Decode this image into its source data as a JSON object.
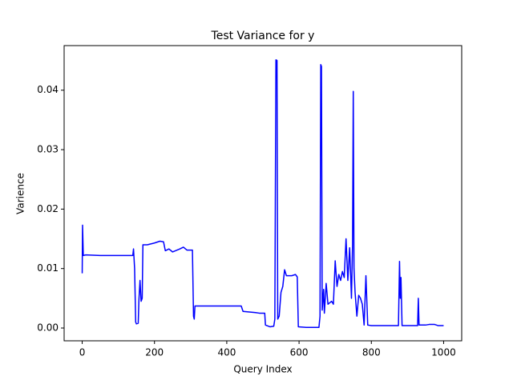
{
  "chart_data": {
    "type": "line",
    "title": "Test Variance for y",
    "x_label": "Query Index",
    "y_label": "Varience",
    "color": "#0000ff",
    "x": [
      0,
      1,
      3,
      10,
      50,
      100,
      140,
      142,
      145,
      148,
      150,
      155,
      157,
      160,
      163,
      166,
      168,
      180,
      200,
      215,
      225,
      230,
      240,
      250,
      270,
      280,
      290,
      305,
      308,
      310,
      312,
      350,
      400,
      440,
      445,
      480,
      490,
      505,
      507,
      520,
      530,
      533,
      536,
      539,
      541,
      545,
      550,
      555,
      560,
      565,
      580,
      590,
      595,
      598,
      620,
      655,
      658,
      660,
      662,
      664,
      668,
      670,
      675,
      680,
      690,
      695,
      700,
      705,
      710,
      715,
      720,
      725,
      730,
      735,
      740,
      745,
      748,
      750,
      752,
      755,
      760,
      765,
      770,
      775,
      780,
      785,
      790,
      800,
      850,
      875,
      878,
      880,
      882,
      885,
      900,
      928,
      930,
      932,
      950,
      960,
      975,
      985,
      1000
    ],
    "values": [
      0.0092,
      0.0173,
      0.0122,
      0.0123,
      0.0122,
      0.0122,
      0.0122,
      0.0133,
      0.01,
      0.001,
      0.0007,
      0.0008,
      0.0048,
      0.008,
      0.0045,
      0.005,
      0.014,
      0.014,
      0.0143,
      0.0146,
      0.0145,
      0.013,
      0.0133,
      0.0128,
      0.0133,
      0.0136,
      0.0131,
      0.0131,
      0.002,
      0.0015,
      0.0037,
      0.0037,
      0.0037,
      0.0037,
      0.0028,
      0.0026,
      0.0025,
      0.0025,
      0.0005,
      0.0002,
      0.0003,
      0.0015,
      0.0451,
      0.045,
      0.0015,
      0.002,
      0.006,
      0.007,
      0.0098,
      0.0088,
      0.0088,
      0.009,
      0.0086,
      0.0002,
      0.0001,
      0.0001,
      0.002,
      0.0443,
      0.044,
      0.003,
      0.0065,
      0.0025,
      0.0075,
      0.004,
      0.0045,
      0.004,
      0.0113,
      0.007,
      0.009,
      0.008,
      0.0095,
      0.0085,
      0.015,
      0.008,
      0.0135,
      0.005,
      0.014,
      0.0398,
      0.01,
      0.006,
      0.002,
      0.0055,
      0.005,
      0.004,
      0.0005,
      0.0088,
      0.0005,
      0.0004,
      0.0004,
      0.0004,
      0.0112,
      0.005,
      0.0085,
      0.0004,
      0.0004,
      0.0004,
      0.005,
      0.0005,
      0.0005,
      0.0006,
      0.0006,
      0.0004,
      0.0004
    ],
    "xlim": [
      -50,
      1050
    ],
    "ylim": [
      -0.00215,
      0.0475
    ],
    "xticks": [
      0,
      200,
      400,
      600,
      800,
      1000
    ],
    "yticks": [
      {
        "value": 0,
        "label": "0.00"
      },
      0.01,
      0.02,
      0.03,
      0.04
    ]
  }
}
